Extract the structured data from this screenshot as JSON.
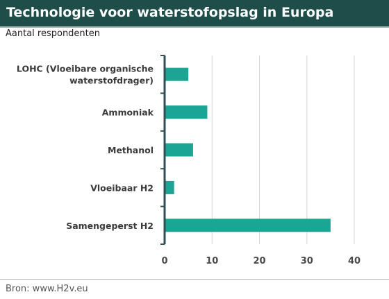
{
  "title": "Technologie voor waterstofopslag in Europa",
  "subtitle": "Aantal respondenten",
  "source": "Bron: www.H2v.eu",
  "colors": {
    "bar": "#1aa594",
    "header": "#1f4d49",
    "axis": "#2f4f55",
    "grid": "#d6d6d6"
  },
  "chart_data": {
    "type": "bar",
    "orientation": "horizontal",
    "categories": [
      [
        "LOHC (Vloeibare organische",
        "waterstofdrager)"
      ],
      [
        "Ammoniak"
      ],
      [
        "Methanol"
      ],
      [
        "Vloeibaar H2"
      ],
      [
        "Samengeperst H2"
      ]
    ],
    "values": [
      5,
      9,
      6,
      2,
      35
    ],
    "xlim": [
      0,
      40
    ],
    "xticks": [
      0,
      10,
      20,
      30,
      40
    ],
    "grid": true
  }
}
